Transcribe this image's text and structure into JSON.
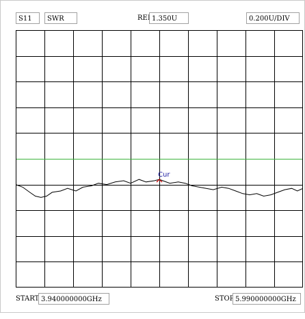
{
  "header": {
    "param": "S11",
    "format": "SWR",
    "ref_label": "REF",
    "ref_value": "1.350U",
    "scale": "0.200U/DIV"
  },
  "footer": {
    "start_label": "START",
    "start_value": "3.940000000GHz",
    "stop_label": "STOP",
    "stop_value": "5.990000000GHz"
  },
  "chart_data": {
    "type": "line",
    "x_unit": "GHz",
    "y_unit": "U",
    "xlim": [
      3.94,
      5.99
    ],
    "ylim": [
      0.35,
      2.35
    ],
    "reference_value": 1.35,
    "grid": true,
    "grid_divisions": {
      "x": 10,
      "y": 10
    },
    "colors": {
      "trace": "#000000",
      "reference": "#3cb43c",
      "marker": "#cc0000",
      "marker_label": "#1a1aa0",
      "grid": "#000000"
    },
    "marker": {
      "label": "Cur",
      "x": 4.965,
      "y": 1.19
    },
    "series": [
      {
        "x": [
          3.94,
          3.99,
          4.04,
          4.08,
          4.12,
          4.16,
          4.2,
          4.26,
          4.31,
          4.37,
          4.42,
          4.48,
          4.53,
          4.59,
          4.65,
          4.71,
          4.76,
          4.82,
          4.87,
          4.93,
          4.965,
          4.99,
          5.04,
          5.1,
          5.15,
          5.2,
          5.25,
          5.3,
          5.35,
          5.41,
          5.46,
          5.51,
          5.56,
          5.61,
          5.66,
          5.71,
          5.76,
          5.81,
          5.86,
          5.91,
          5.95,
          5.99
        ],
        "y": [
          1.15,
          1.13,
          1.09,
          1.06,
          1.05,
          1.06,
          1.09,
          1.1,
          1.12,
          1.1,
          1.13,
          1.14,
          1.16,
          1.15,
          1.17,
          1.18,
          1.16,
          1.19,
          1.17,
          1.18,
          1.19,
          1.18,
          1.16,
          1.17,
          1.16,
          1.14,
          1.13,
          1.12,
          1.11,
          1.13,
          1.12,
          1.1,
          1.08,
          1.07,
          1.08,
          1.06,
          1.07,
          1.09,
          1.11,
          1.12,
          1.1,
          1.12
        ]
      }
    ]
  }
}
